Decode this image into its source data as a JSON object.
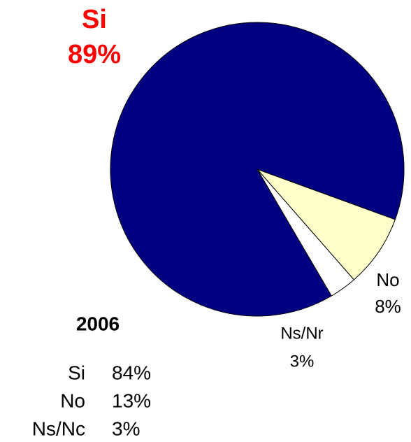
{
  "chart_data": {
    "type": "pie",
    "categories": [
      "Si",
      "No",
      "Ns/Nr"
    ],
    "values": [
      89,
      8,
      3
    ],
    "value_labels": [
      "89%",
      "8%",
      "3%"
    ],
    "colors": [
      "#000080",
      "#ffffcc",
      "#ffffff"
    ]
  },
  "legend_table": {
    "title": "2006",
    "rows": [
      [
        "Si",
        "84%"
      ],
      [
        "No",
        "13%"
      ],
      [
        "Ns/Nc",
        "3%"
      ]
    ]
  }
}
